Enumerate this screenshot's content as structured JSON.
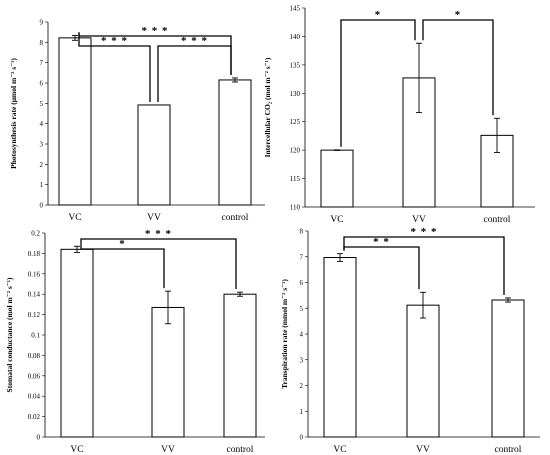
{
  "chart_data": [
    {
      "type": "bar",
      "categories": [
        "VC",
        "VV",
        "control"
      ],
      "values": [
        8.22,
        4.92,
        6.15
      ],
      "error": [
        0.12,
        0.0,
        0.1
      ],
      "ylabel": "Photosynthesis rate (μmol m⁻² s⁻¹)",
      "ylim": [
        0,
        9
      ],
      "yticks": [
        "0",
        "1",
        "2",
        "3",
        "4",
        "5",
        "6",
        "7",
        "8",
        "9"
      ],
      "grid": false,
      "significance": [
        {
          "from": 0,
          "to": 2,
          "label": "* * *"
        },
        {
          "from": 0,
          "to": 1,
          "label": "* * *"
        },
        {
          "from": 1,
          "to": 2,
          "label": "* * *"
        }
      ]
    },
    {
      "type": "bar",
      "categories": [
        "VC",
        "VV",
        "control"
      ],
      "values": [
        120.0,
        132.7,
        122.6
      ],
      "error": [
        0.05,
        6.1,
        3.0
      ],
      "ylabel": "Intercellular CO₂ (mol m⁻² s⁻¹)",
      "ylim": [
        110,
        145
      ],
      "yticks": [
        "110",
        "115",
        "120",
        "125",
        "130",
        "135",
        "140",
        "145"
      ],
      "grid": false,
      "significance": [
        {
          "from": 0,
          "to": 1,
          "label": "*"
        },
        {
          "from": 1,
          "to": 2,
          "label": "*"
        }
      ]
    },
    {
      "type": "bar",
      "categories": [
        "VC",
        "VV",
        "control"
      ],
      "values": [
        0.184,
        0.127,
        0.14
      ],
      "error": [
        0.003,
        0.016,
        0.002
      ],
      "ylabel": "Stomatal conductance (mol m⁻² s⁻¹)",
      "ylim": [
        0,
        0.2
      ],
      "yticks": [
        "0",
        "0.02",
        "0.04",
        "0.06",
        "0.08",
        "0.1",
        "0.12",
        "0.14",
        "0.16",
        "0.18",
        "0.2"
      ],
      "grid": false,
      "significance": [
        {
          "from": 0,
          "to": 2,
          "label": "* * *"
        },
        {
          "from": 0,
          "to": 1,
          "label": "*"
        }
      ]
    },
    {
      "type": "bar",
      "categories": [
        "VC",
        "VV",
        "control"
      ],
      "values": [
        6.97,
        5.12,
        5.32
      ],
      "error": [
        0.15,
        0.5,
        0.08
      ],
      "ylabel": "Transpiration rate (mmol m⁻² s⁻¹)",
      "ylim": [
        0,
        8
      ],
      "yticks": [
        "0",
        "1",
        "2",
        "3",
        "4",
        "5",
        "6",
        "7",
        "8"
      ],
      "grid": false,
      "significance": [
        {
          "from": 0,
          "to": 2,
          "label": "* * *"
        },
        {
          "from": 0,
          "to": 1,
          "label": "* *"
        }
      ]
    }
  ]
}
